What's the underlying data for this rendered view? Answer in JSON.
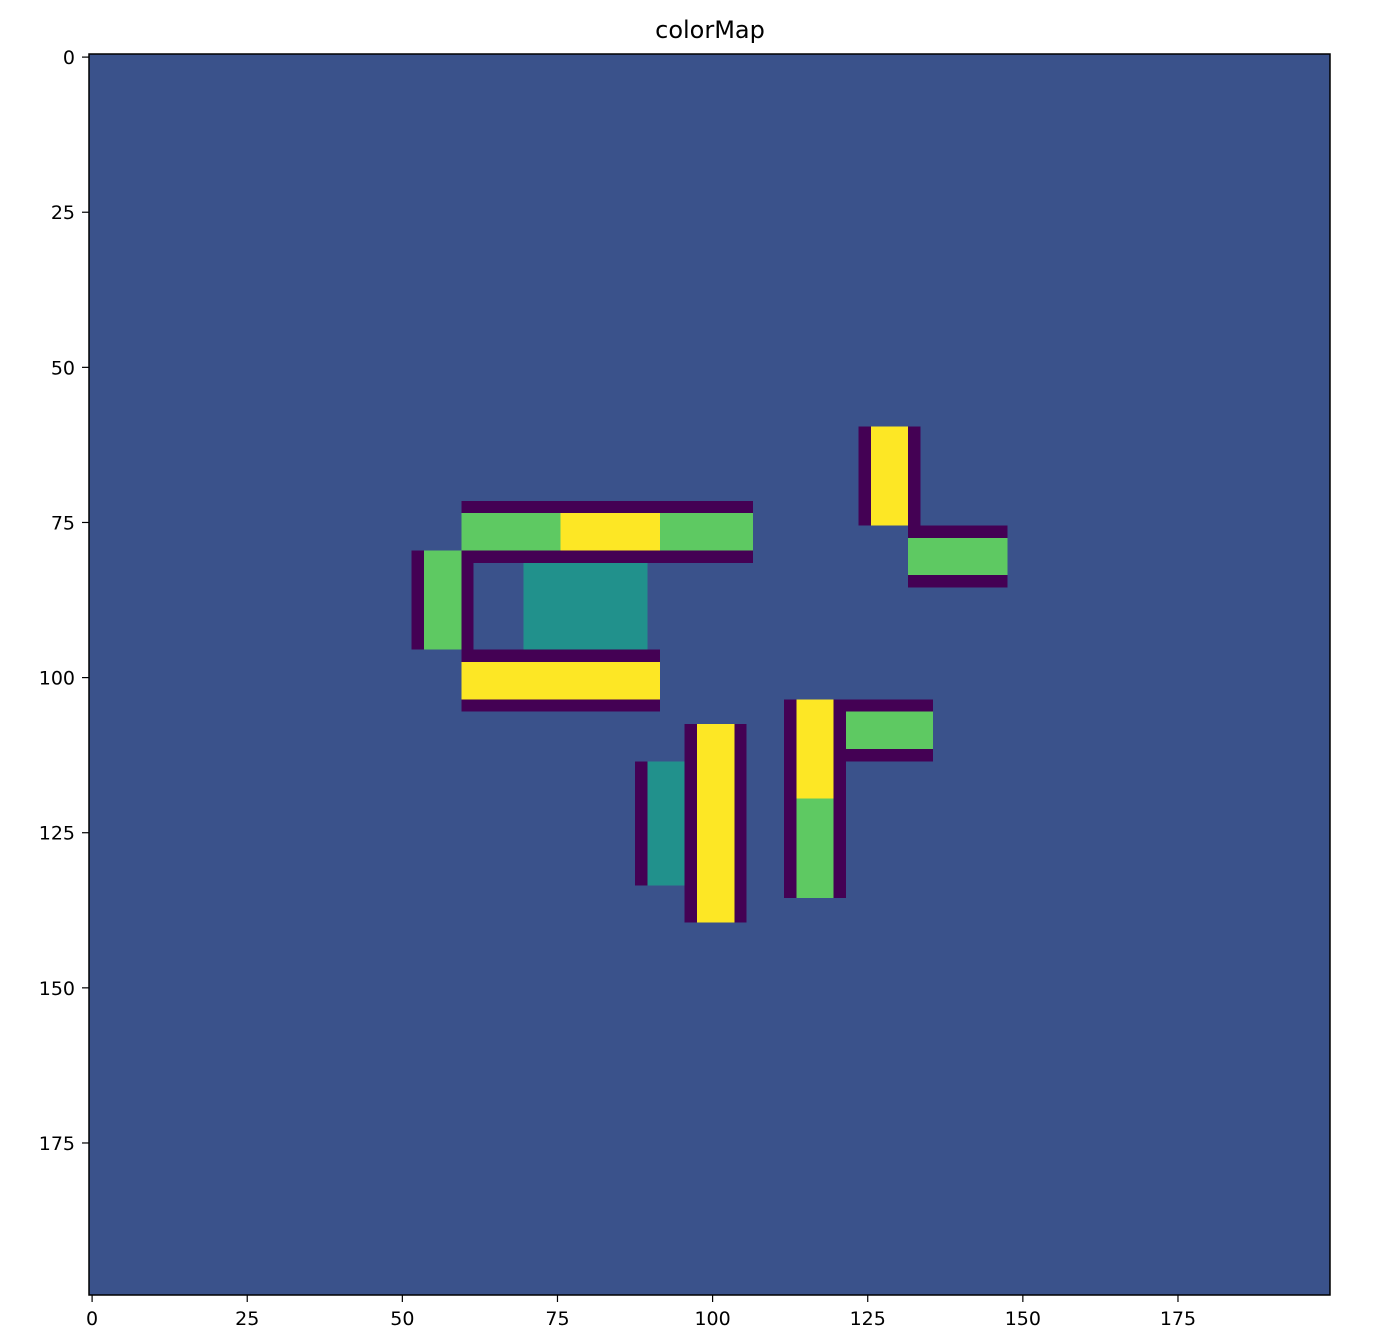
{
  "chart_data": {
    "type": "heatmap",
    "title": "colorMap",
    "xlabel": "",
    "ylabel": "",
    "image_shape": [
      200,
      200
    ],
    "xlim": [
      -0.5,
      199.5
    ],
    "ylim": [
      199.5,
      -0.5
    ],
    "x_ticks": [
      0,
      25,
      50,
      75,
      100,
      125,
      150,
      175
    ],
    "y_ticks": [
      0,
      25,
      50,
      75,
      100,
      125,
      150,
      175
    ],
    "grid": false,
    "colormap": "viridis",
    "background_color": "#3a528b",
    "colors": {
      "dark": "#440154",
      "teal": "#21918c",
      "green": "#5ec962",
      "yellow": "#fde725"
    },
    "rectangles": [
      {
        "color": "dark",
        "x": [
          60,
          107
        ],
        "y": [
          72,
          74
        ]
      },
      {
        "color": "green",
        "x": [
          60,
          76
        ],
        "y": [
          74,
          80
        ]
      },
      {
        "color": "yellow",
        "x": [
          76,
          92
        ],
        "y": [
          74,
          80
        ]
      },
      {
        "color": "green",
        "x": [
          92,
          107
        ],
        "y": [
          74,
          80
        ]
      },
      {
        "color": "dark",
        "x": [
          60,
          107
        ],
        "y": [
          80,
          82
        ]
      },
      {
        "color": "dark",
        "x": [
          52,
          54
        ],
        "y": [
          80,
          96
        ]
      },
      {
        "color": "green",
        "x": [
          54,
          60
        ],
        "y": [
          80,
          96
        ]
      },
      {
        "color": "dark",
        "x": [
          60,
          62
        ],
        "y": [
          80,
          96
        ]
      },
      {
        "color": "teal",
        "x": [
          70,
          90
        ],
        "y": [
          82,
          96
        ]
      },
      {
        "color": "dark",
        "x": [
          60,
          92
        ],
        "y": [
          96,
          98
        ]
      },
      {
        "color": "yellow",
        "x": [
          60,
          92
        ],
        "y": [
          98,
          104
        ]
      },
      {
        "color": "dark",
        "x": [
          60,
          92
        ],
        "y": [
          104,
          106
        ]
      },
      {
        "color": "dark",
        "x": [
          124,
          126
        ],
        "y": [
          60,
          76
        ]
      },
      {
        "color": "yellow",
        "x": [
          126,
          132
        ],
        "y": [
          60,
          76
        ]
      },
      {
        "color": "dark",
        "x": [
          132,
          134
        ],
        "y": [
          60,
          76
        ]
      },
      {
        "color": "dark",
        "x": [
          132,
          148
        ],
        "y": [
          76,
          78
        ]
      },
      {
        "color": "green",
        "x": [
          132,
          148
        ],
        "y": [
          78,
          84
        ]
      },
      {
        "color": "dark",
        "x": [
          132,
          148
        ],
        "y": [
          84,
          86
        ]
      },
      {
        "color": "dark",
        "x": [
          88,
          90
        ],
        "y": [
          114,
          134
        ]
      },
      {
        "color": "teal",
        "x": [
          90,
          96
        ],
        "y": [
          114,
          134
        ]
      },
      {
        "color": "dark",
        "x": [
          96,
          98
        ],
        "y": [
          108,
          140
        ]
      },
      {
        "color": "yellow",
        "x": [
          98,
          104
        ],
        "y": [
          108,
          140
        ]
      },
      {
        "color": "dark",
        "x": [
          104,
          106
        ],
        "y": [
          108,
          140
        ]
      },
      {
        "color": "dark",
        "x": [
          112,
          114
        ],
        "y": [
          104,
          136
        ]
      },
      {
        "color": "yellow",
        "x": [
          114,
          120
        ],
        "y": [
          104,
          120
        ]
      },
      {
        "color": "green",
        "x": [
          114,
          120
        ],
        "y": [
          120,
          136
        ]
      },
      {
        "color": "dark",
        "x": [
          120,
          122
        ],
        "y": [
          104,
          136
        ]
      },
      {
        "color": "dark",
        "x": [
          122,
          136
        ],
        "y": [
          104,
          106
        ]
      },
      {
        "color": "green",
        "x": [
          122,
          136
        ],
        "y": [
          106,
          112
        ]
      },
      {
        "color": "dark",
        "x": [
          122,
          136
        ],
        "y": [
          112,
          114
        ]
      }
    ]
  }
}
